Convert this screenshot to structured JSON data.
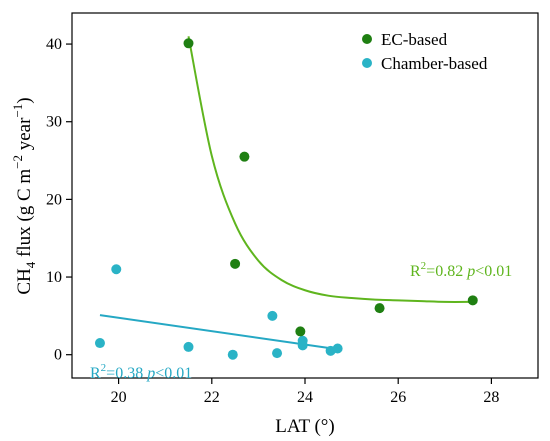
{
  "colors": {
    "ec": "#1f7f12",
    "chamber": "#2ab3c6",
    "ec_fit": "#5fb51e",
    "chamber_fit": "#25a8c4"
  },
  "chart_data": {
    "type": "scatter",
    "xlabel": "LAT (°)",
    "ylabel": "CH4 flux (g C m−2 year−1)",
    "ylabel_parts": {
      "base": "CH",
      "sub": "4",
      "rest": " flux (g C m",
      "sup1": "−2",
      "mid": " year",
      "sup2": "−1",
      "end": ")"
    },
    "xlim": [
      19,
      29
    ],
    "ylim": [
      -3,
      44
    ],
    "xticks": [
      20,
      22,
      24,
      26,
      28
    ],
    "yticks": [
      0,
      10,
      20,
      30,
      40
    ],
    "legend_position": "top-right",
    "series": [
      {
        "name": "EC-based",
        "color": "#1f7f12",
        "points": [
          {
            "x": 21.5,
            "y": 40.1
          },
          {
            "x": 22.7,
            "y": 25.5
          },
          {
            "x": 22.5,
            "y": 11.7
          },
          {
            "x": 23.9,
            "y": 3.0
          },
          {
            "x": 25.6,
            "y": 6.0
          },
          {
            "x": 27.6,
            "y": 7.0
          }
        ],
        "fit": {
          "type": "exponential",
          "x": [
            21.5,
            22.0,
            22.5,
            23.0,
            23.5,
            24.0,
            24.5,
            25.0,
            25.5,
            26.0,
            26.5,
            27.0,
            27.6
          ],
          "y": [
            41.0,
            25.6,
            16.9,
            12.1,
            9.6,
            8.3,
            7.6,
            7.3,
            7.1,
            7.0,
            6.9,
            6.8,
            6.8
          ]
        },
        "annotation": {
          "r2_label": "R",
          "r2_sup": "2",
          "r2_value": "=0.82",
          "p_sym": "p",
          "p_value": "<0.01"
        }
      },
      {
        "name": "Chamber-based",
        "color": "#2ab3c6",
        "points": [
          {
            "x": 19.6,
            "y": 1.5
          },
          {
            "x": 19.95,
            "y": 11.0
          },
          {
            "x": 21.5,
            "y": 1.0
          },
          {
            "x": 22.45,
            "y": 0.0
          },
          {
            "x": 23.3,
            "y": 5.0
          },
          {
            "x": 23.4,
            "y": 0.2
          },
          {
            "x": 23.95,
            "y": 1.8
          },
          {
            "x": 23.95,
            "y": 1.2
          },
          {
            "x": 24.55,
            "y": 0.5
          },
          {
            "x": 24.7,
            "y": 0.8
          }
        ],
        "fit": {
          "type": "linear",
          "x": [
            19.6,
            24.7
          ],
          "y": [
            5.1,
            0.7
          ]
        },
        "annotation": {
          "r2_label": "R",
          "r2_sup": "2",
          "r2_value": "=0.38",
          "p_sym": "p",
          "p_value": "<0.01"
        }
      }
    ]
  }
}
